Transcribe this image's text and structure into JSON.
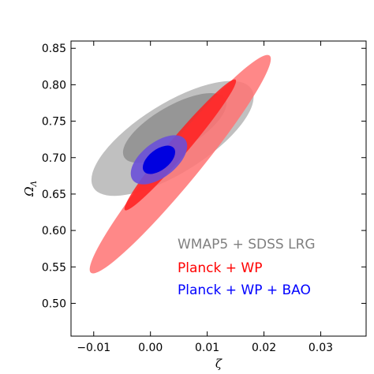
{
  "chart_data": {
    "type": "contour",
    "xlabel": "ζ",
    "ylabel": "ΩΛ",
    "xlim": [
      -0.014,
      0.038
    ],
    "ylim": [
      0.455,
      0.86
    ],
    "xticks": [
      {
        "value": -0.01,
        "label": "−0.01"
      },
      {
        "value": 0.0,
        "label": "0.00"
      },
      {
        "value": 0.01,
        "label": "0.01"
      },
      {
        "value": 0.02,
        "label": "0.02"
      },
      {
        "value": 0.03,
        "label": "0.03"
      }
    ],
    "yticks": [
      {
        "value": 0.5,
        "label": "0.50"
      },
      {
        "value": 0.55,
        "label": "0.55"
      },
      {
        "value": 0.6,
        "label": "0.60"
      },
      {
        "value": 0.65,
        "label": "0.65"
      },
      {
        "value": 0.7,
        "label": "0.70"
      },
      {
        "value": 0.75,
        "label": "0.75"
      },
      {
        "value": 0.8,
        "label": "0.80"
      },
      {
        "value": 0.85,
        "label": "0.85"
      }
    ],
    "grid": false,
    "legend_position": "bottom-right",
    "series": [
      {
        "name": "WMAP5 + SDSS LRG",
        "color": "#808080",
        "contours": [
          {
            "level": "outer",
            "fill": "#c0c0c0",
            "center": [
              0.005,
              0.735
            ],
            "semi_major": 0.022,
            "semi_minor": 0.022,
            "angle_deg": 38,
            "x_span": [
              -0.018,
              0.015
            ],
            "y_span": [
              0.665,
              0.83
            ]
          },
          {
            "level": "inner",
            "fill": "#969696",
            "center": [
              0.004,
              0.745
            ],
            "semi_major": 0.014,
            "semi_minor": 0.014,
            "angle_deg": 38,
            "x_span": [
              -0.009,
              0.012
            ],
            "y_span": [
              0.7,
              0.8
            ]
          }
        ]
      },
      {
        "name": "Planck + WP",
        "color": "#ff0000",
        "contours": [
          {
            "level": "outer",
            "fill": "#ff7373",
            "endpoints": [
              [
                -0.0105,
                0.542
              ],
              [
                0.021,
                0.84
              ]
            ]
          },
          {
            "level": "inner",
            "fill": "#ff2020",
            "endpoints": [
              [
                -0.0045,
                0.628
              ],
              [
                0.015,
                0.807
              ]
            ]
          }
        ]
      },
      {
        "name": "Planck + WP + BAO",
        "color": "#0000ff",
        "contours": [
          {
            "level": "outer",
            "fill": "#6a50d8",
            "center": [
              0.0015,
              0.697
            ],
            "x_span": [
              -0.0035,
              0.0065
            ],
            "y_span": [
              0.67,
              0.727
            ]
          },
          {
            "level": "inner",
            "fill": "#0000e0",
            "center": [
              0.0015,
              0.697
            ],
            "x_span": [
              -0.001,
              0.004
            ],
            "y_span": [
              0.681,
              0.713
            ]
          }
        ]
      }
    ]
  }
}
